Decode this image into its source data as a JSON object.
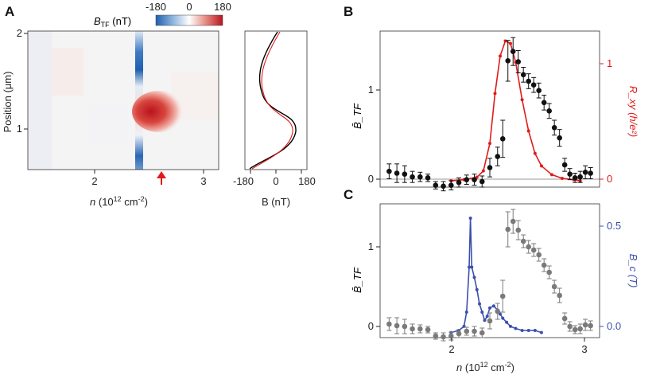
{
  "panels": {
    "a": "A",
    "b": "B",
    "c": "C"
  },
  "colorbar": {
    "label": "B",
    "label_sub": "TF",
    "unit": " (nT)",
    "ticks": [
      "-180",
      "0",
      "180"
    ],
    "colors": [
      "#1f5fae",
      "#ffffff",
      "#b8141d"
    ]
  },
  "heatmap": {
    "ylabel": "Position (μm)",
    "xlabel": "n",
    "xlabel_unit": "(10",
    "xlabel_exp": "12",
    "xlabel_tail": " cm",
    "xlabel_neg": "-2",
    "xlabel_close": ")",
    "xticks": [
      "2",
      "3"
    ],
    "yticks": [
      "2",
      "1"
    ],
    "marker_color": "#e01b1b"
  },
  "profile": {
    "xlabel": "B (nT)",
    "xticks": [
      "-180",
      "0",
      "180"
    ],
    "colors": [
      "#000000",
      "#e01b1b"
    ]
  },
  "chart_data": [
    {
      "panel": "B",
      "type": "scatter",
      "xlabel": "n (10^12 cm^-2)",
      "ylabel_left": "B̄_TF",
      "ylabel_right": "R_xy (h/e²)",
      "xlim": [
        1.45,
        3.15
      ],
      "ylim_left": [
        -0.08,
        1.6
      ],
      "ylim_right": [
        -0.05,
        1.2
      ],
      "yticks_left": [
        "0",
        "1"
      ],
      "yticks_right": [
        "0",
        "1"
      ],
      "series": [
        {
          "name": "B̄_TF",
          "color": "#111111",
          "x": [
            1.52,
            1.58,
            1.64,
            1.7,
            1.76,
            1.82,
            1.88,
            1.94,
            2.0,
            2.06,
            2.12,
            2.18,
            2.24,
            2.3,
            2.36,
            2.4,
            2.44,
            2.48,
            2.52,
            2.56,
            2.6,
            2.64,
            2.68,
            2.72,
            2.76,
            2.8,
            2.84,
            2.88,
            2.92,
            2.96,
            3.0,
            3.04,
            3.08
          ],
          "y": [
            0.09,
            0.07,
            0.06,
            0.03,
            0.03,
            0.02,
            -0.06,
            -0.07,
            -0.06,
            -0.03,
            0.0,
            0.0,
            -0.02,
            0.13,
            0.25,
            0.44,
            1.28,
            1.38,
            1.27,
            1.13,
            1.06,
            1.02,
            0.96,
            0.83,
            0.74,
            0.56,
            0.45,
            0.16,
            0.06,
            0.02,
            0.03,
            0.08,
            0.07
          ],
          "err": [
            0.08,
            0.1,
            0.09,
            0.06,
            0.05,
            0.04,
            0.04,
            0.05,
            0.05,
            0.05,
            0.05,
            0.06,
            0.06,
            0.1,
            0.1,
            0.2,
            0.22,
            0.15,
            0.12,
            0.08,
            0.08,
            0.08,
            0.08,
            0.08,
            0.08,
            0.08,
            0.09,
            0.07,
            0.06,
            0.05,
            0.06,
            0.07,
            0.06
          ]
        },
        {
          "name": "R_xy",
          "color": "#e01b1b",
          "axis": "right",
          "x": [
            2.0,
            2.1,
            2.2,
            2.25,
            2.3,
            2.34,
            2.38,
            2.42,
            2.46,
            2.5,
            2.55,
            2.6,
            2.65,
            2.7,
            2.78,
            2.86,
            2.95,
            3.0
          ],
          "y": [
            0.0,
            0.01,
            0.03,
            0.08,
            0.3,
            0.7,
            1.0,
            1.12,
            1.1,
            0.95,
            0.65,
            0.4,
            0.22,
            0.12,
            0.05,
            0.02,
            0.01,
            0.0
          ]
        }
      ]
    },
    {
      "panel": "C",
      "type": "scatter",
      "xlabel": "n (10^12 cm^-2)",
      "ylabel_left": "B̄_TF",
      "ylabel_right": "B_c (T)",
      "xlim": [
        1.45,
        3.15
      ],
      "ylim_left": [
        -0.08,
        1.6
      ],
      "ylim_right": [
        -0.025,
        0.63
      ],
      "xticks": [
        "2",
        "3"
      ],
      "yticks_left": [
        "0",
        "1"
      ],
      "yticks_right": [
        "0.0",
        "0.5"
      ],
      "series": [
        {
          "name": "B̄_TF",
          "color": "#7a7a7a",
          "x": [
            1.52,
            1.58,
            1.64,
            1.7,
            1.76,
            1.82,
            1.88,
            1.94,
            2.0,
            2.06,
            2.12,
            2.18,
            2.24,
            2.3,
            2.36,
            2.4,
            2.44,
            2.48,
            2.52,
            2.56,
            2.6,
            2.64,
            2.68,
            2.72,
            2.76,
            2.8,
            2.84,
            2.88,
            2.92,
            2.96,
            3.0,
            3.04,
            3.08
          ],
          "y": [
            0.09,
            0.07,
            0.06,
            0.03,
            0.03,
            0.02,
            -0.06,
            -0.07,
            -0.06,
            -0.03,
            0.0,
            0.0,
            -0.02,
            0.13,
            0.25,
            0.44,
            1.28,
            1.38,
            1.27,
            1.13,
            1.06,
            1.02,
            0.96,
            0.83,
            0.74,
            0.56,
            0.45,
            0.16,
            0.06,
            0.02,
            0.03,
            0.08,
            0.07
          ],
          "err": [
            0.08,
            0.1,
            0.09,
            0.06,
            0.05,
            0.04,
            0.04,
            0.05,
            0.05,
            0.05,
            0.05,
            0.06,
            0.06,
            0.1,
            0.1,
            0.2,
            0.22,
            0.15,
            0.12,
            0.08,
            0.08,
            0.08,
            0.08,
            0.08,
            0.08,
            0.08,
            0.09,
            0.07,
            0.06,
            0.05,
            0.06,
            0.07,
            0.06
          ]
        },
        {
          "name": "B_c",
          "color": "#3b4fb0",
          "axis": "right",
          "x": [
            2.0,
            2.06,
            2.1,
            2.12,
            2.14,
            2.15,
            2.16,
            2.18,
            2.2,
            2.22,
            2.24,
            2.26,
            2.28,
            2.3,
            2.33,
            2.36,
            2.38,
            2.4,
            2.43,
            2.46,
            2.5,
            2.55,
            2.6,
            2.65,
            2.7
          ],
          "y": [
            0.0,
            0.01,
            0.03,
            0.1,
            0.32,
            0.56,
            0.32,
            0.27,
            0.21,
            0.14,
            0.1,
            0.06,
            0.08,
            0.12,
            0.13,
            0.11,
            0.09,
            0.07,
            0.05,
            0.03,
            0.02,
            0.01,
            0.01,
            0.01,
            0.0
          ]
        }
      ]
    }
  ]
}
